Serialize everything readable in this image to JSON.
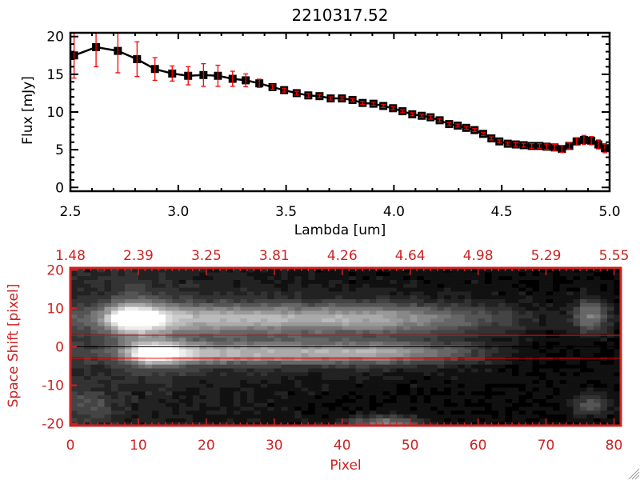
{
  "title": "2210317.52",
  "colors": {
    "flux_line": "#000000",
    "error_bar": "#ff0000",
    "lower_axes": "#cc2222",
    "extraction_lines": "#ff0000",
    "center_line": "#000000"
  },
  "chart_data": [
    {
      "type": "line",
      "xlabel": "Lambda [um]",
      "ylabel": "Flux [mJy]",
      "xlim": [
        2.5,
        5.0
      ],
      "ylim": [
        -0.5,
        20.5
      ],
      "xticks": [
        "2.5",
        "3.0",
        "3.5",
        "4.0",
        "4.5",
        "5.0"
      ],
      "yticks": [
        "0",
        "5",
        "10",
        "15",
        "20"
      ],
      "marker": "filled-square",
      "error_bars": true,
      "x": [
        2.517,
        2.619,
        2.72,
        2.809,
        2.892,
        2.972,
        3.046,
        3.117,
        3.184,
        3.252,
        3.313,
        3.376,
        3.437,
        3.491,
        3.549,
        3.603,
        3.655,
        3.707,
        3.759,
        3.808,
        3.855,
        3.905,
        3.951,
        3.996,
        4.04,
        4.085,
        4.129,
        4.17,
        4.212,
        4.256,
        4.296,
        4.335,
        4.374,
        4.414,
        4.452,
        4.489,
        4.528,
        4.565,
        4.602,
        4.639,
        4.675,
        4.708,
        4.745,
        4.779,
        4.813,
        4.847,
        4.881,
        4.915,
        4.948,
        4.978
      ],
      "y": [
        17.5,
        18.6,
        18.1,
        17.0,
        15.7,
        15.1,
        14.8,
        14.9,
        14.8,
        14.4,
        14.2,
        13.8,
        13.3,
        12.9,
        12.5,
        12.2,
        12.1,
        11.8,
        11.8,
        11.6,
        11.2,
        11.1,
        10.8,
        10.5,
        10.1,
        9.7,
        9.5,
        9.3,
        8.9,
        8.4,
        8.2,
        7.9,
        7.6,
        7.1,
        6.5,
        6.1,
        5.8,
        5.7,
        5.6,
        5.5,
        5.5,
        5.4,
        5.3,
        5.1,
        5.5,
        6.1,
        6.3,
        6.2,
        5.7,
        5.2
      ],
      "yerr": [
        3.0,
        2.6,
        2.9,
        2.3,
        1.5,
        1.0,
        1.2,
        1.5,
        1.4,
        1.0,
        0.85,
        0.55,
        0.3,
        0.25,
        0.25,
        0.25,
        0.2,
        0.2,
        0.2,
        0.2,
        0.2,
        0.2,
        0.2,
        0.2,
        0.2,
        0.2,
        0.2,
        0.25,
        0.2,
        0.2,
        0.2,
        0.2,
        0.2,
        0.2,
        0.2,
        0.2,
        0.2,
        0.25,
        0.25,
        0.3,
        0.3,
        0.35,
        0.4,
        0.45,
        0.4,
        0.5,
        0.6,
        0.55,
        0.6,
        0.6
      ]
    },
    {
      "type": "heatmap",
      "colormap": "grayscale",
      "xlabel": "Pixel",
      "ylabel": "Space Shift [pixel]",
      "xlim": [
        0,
        81
      ],
      "ylim": [
        -20.5,
        20.5
      ],
      "xticks": [
        "0",
        "10",
        "20",
        "30",
        "40",
        "50",
        "60",
        "70",
        "80"
      ],
      "yticks": [
        "-20",
        "-10",
        "0",
        "10",
        "20"
      ],
      "top_xticks": [
        "1.48",
        "2.39",
        "3.25",
        "3.81",
        "4.26",
        "4.64",
        "4.98",
        "5.29",
        "5.55"
      ],
      "hlines": [
        {
          "y": 3,
          "color": "#ff0000"
        },
        {
          "y": 0,
          "color": "#000000"
        },
        {
          "y": -3,
          "color": "#ff0000"
        }
      ]
    }
  ]
}
